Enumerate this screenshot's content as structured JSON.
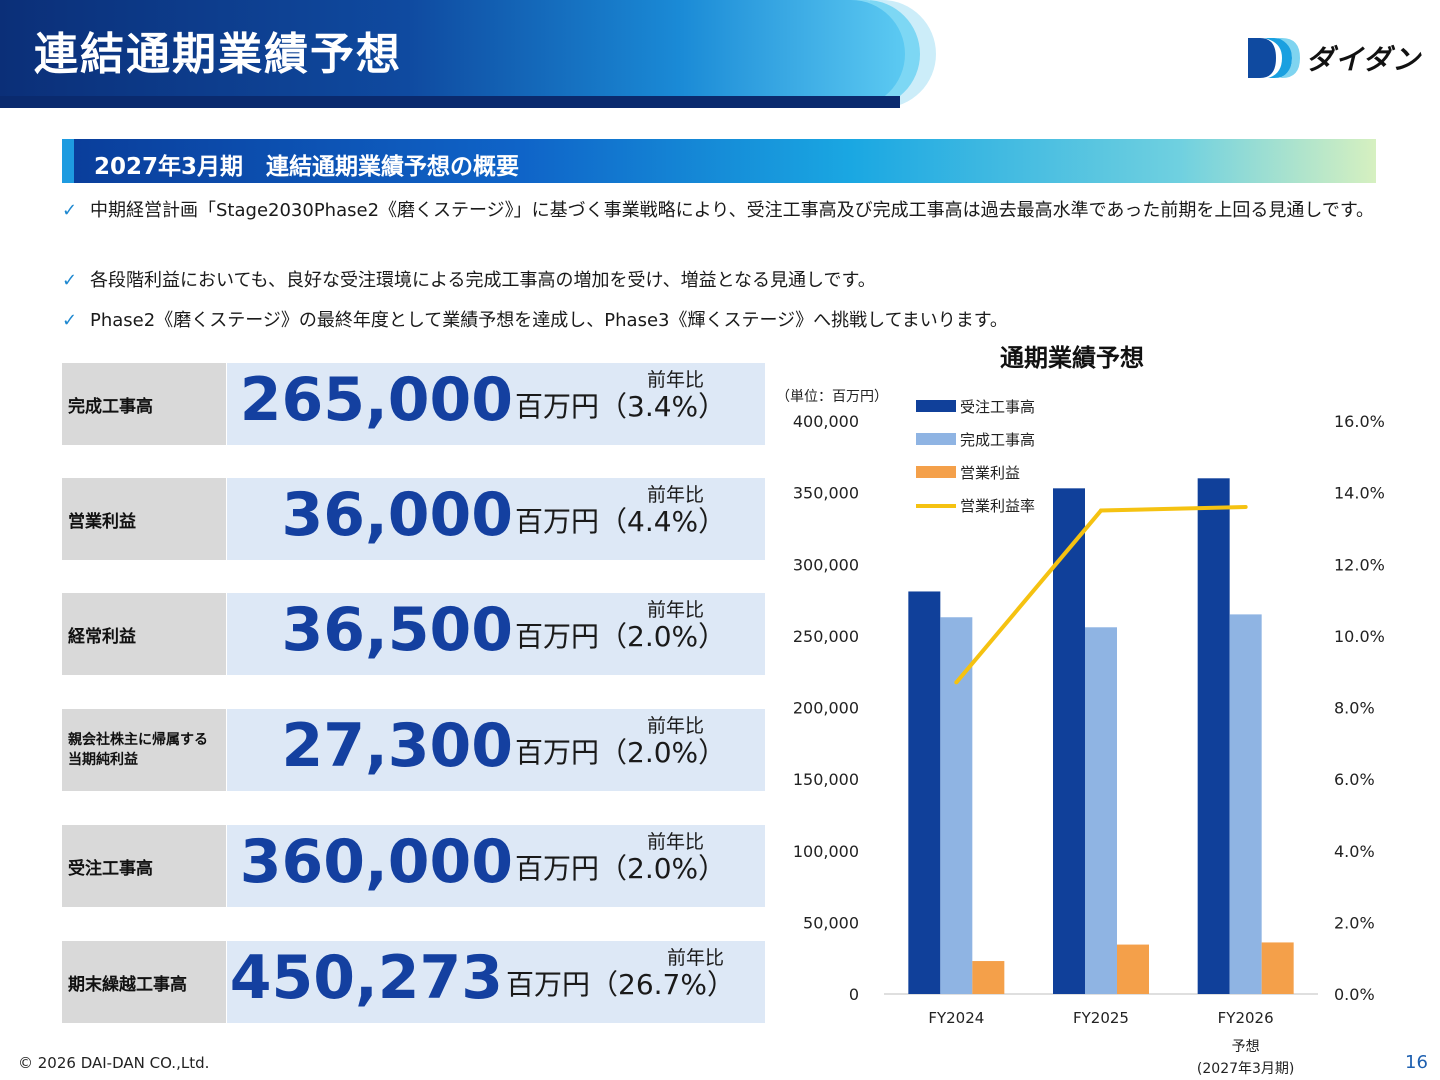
{
  "header": {
    "title": "連結通期業績予想",
    "logo_text": "ダイダン"
  },
  "section": {
    "title": "2027年3月期　連結通期業績予想の概要"
  },
  "bullets": [
    "中期経営計画「Stage2030Phase2《磨くステージ》」に基づく事業戦略により、受注工事高及び完成工事高は過去最高水準であった前期を上回る見通しです。",
    "各段階利益においても、良好な受注環境による完成工事高の増加を受け、増益となる見通しです。",
    "Phase2《磨くステージ》の最終年度として業績予想を達成し、Phase3《輝くステージ》へ挑戦してまいります。"
  ],
  "kpis": [
    {
      "label": "完成工事高",
      "value": "265,000",
      "unit": "百万円（3.4%）",
      "yoy_label": "前年比"
    },
    {
      "label": "営業利益",
      "value": "36,000",
      "unit": "百万円（4.4%）",
      "yoy_label": "前年比"
    },
    {
      "label": "経常利益",
      "value": "36,500",
      "unit": "百万円（2.0%）",
      "yoy_label": "前年比"
    },
    {
      "label": "親会社株主に帰属する\n当期純利益",
      "value": "27,300",
      "unit": "百万円（2.0%）",
      "yoy_label": "前年比"
    },
    {
      "label": "受注工事高",
      "value": "360,000",
      "unit": "百万円（2.0%）",
      "yoy_label": "前年比"
    },
    {
      "label": "期末繰越工事高",
      "value": "450,273",
      "unit": "百万円（26.7%）",
      "yoy_label": "前年比"
    }
  ],
  "chart_data": {
    "type": "bar",
    "title": "通期業績予想",
    "unit_label": "（単位：百万円）",
    "categories": [
      "FY2024",
      "FY2025",
      "FY2026"
    ],
    "category_sublabels": [
      "",
      "",
      "予想\n(2027年3月期)"
    ],
    "series": [
      {
        "name": "受注工事高",
        "type": "bar",
        "axis": "left",
        "color": "#10409a",
        "values": [
          281000,
          353000,
          360000
        ]
      },
      {
        "name": "完成工事高",
        "type": "bar",
        "axis": "left",
        "color": "#8fb4e3",
        "values": [
          263000,
          256000,
          265000
        ]
      },
      {
        "name": "営業利益",
        "type": "bar",
        "axis": "left",
        "color": "#f4a04a",
        "values": [
          23000,
          34500,
          36000
        ]
      },
      {
        "name": "営業利益率",
        "type": "line",
        "axis": "right",
        "color": "#f5c211",
        "values": [
          8.7,
          13.5,
          13.6
        ]
      }
    ],
    "y_left": {
      "min": 0,
      "max": 400000,
      "ticks": [
        "0",
        "50,000",
        "100,000",
        "150,000",
        "200,000",
        "250,000",
        "300,000",
        "350,000",
        "400,000"
      ]
    },
    "y_right": {
      "min": 0,
      "max": 16,
      "ticks": [
        "0.0%",
        "2.0%",
        "4.0%",
        "6.0%",
        "8.0%",
        "10.0%",
        "12.0%",
        "14.0%",
        "16.0%"
      ]
    },
    "legend_position": "top-left"
  },
  "footer": {
    "copyright": "© 2026 DAI-DAN CO.,Ltd.",
    "page_number": "16"
  }
}
